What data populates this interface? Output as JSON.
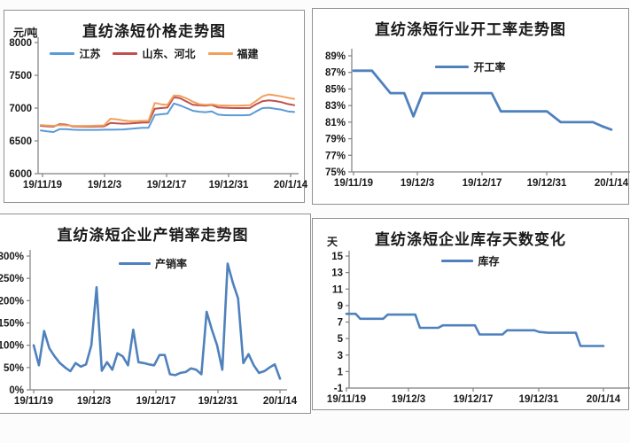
{
  "page": {
    "background": "#fcfcfc",
    "panel_border": "#919191",
    "axis_color": "#7f7f7f",
    "text_color": "#1a1a1a"
  },
  "chart_data": [
    {
      "type": "line",
      "id": "price",
      "title": "直纺涤短价格走势图",
      "y_axis": {
        "unit": "元/吨",
        "min": 6000,
        "max": 8000,
        "step": 500,
        "suffix": ""
      },
      "x_ticks": [
        "19/11/19",
        "19/12/3",
        "19/12/17",
        "19/12/31",
        "20/1/14"
      ],
      "x_domain_days": [
        0,
        56
      ],
      "legend": [
        {
          "label": "江苏",
          "color": "#5B9BD5"
        },
        {
          "label": "山东、河北",
          "color": "#C0504D"
        },
        {
          "label": "福建",
          "color": "#EFA15B"
        }
      ],
      "series": [
        {
          "name": "江苏",
          "color": "#5B9BD5",
          "values": [
            6660,
            6645,
            6635,
            6680,
            6678,
            6670,
            6668,
            6668,
            6668,
            6668,
            6670,
            6670,
            6672,
            6675,
            6682,
            6690,
            6698,
            6700,
            6895,
            6905,
            6915,
            7070,
            7040,
            7000,
            6960,
            6945,
            6938,
            6948,
            6900,
            6892,
            6890,
            6890,
            6890,
            6895,
            6950,
            7000,
            7005,
            6990,
            6975,
            6950,
            6940
          ]
        },
        {
          "name": "山东、河北",
          "color": "#C0504D",
          "values": [
            6730,
            6722,
            6718,
            6755,
            6748,
            6722,
            6720,
            6718,
            6718,
            6720,
            6722,
            6775,
            6768,
            6762,
            6765,
            6772,
            6778,
            6780,
            6990,
            7000,
            7008,
            7165,
            7150,
            7100,
            7050,
            7042,
            7038,
            7048,
            7010,
            7005,
            7002,
            7000,
            7000,
            7002,
            7060,
            7105,
            7118,
            7108,
            7090,
            7062,
            7045
          ]
        },
        {
          "name": "福建",
          "color": "#EFA15B",
          "values": [
            6742,
            6735,
            6730,
            6740,
            6736,
            6730,
            6728,
            6728,
            6730,
            6732,
            6736,
            6838,
            6828,
            6812,
            6802,
            6800,
            6805,
            6806,
            7078,
            7058,
            7048,
            7192,
            7185,
            7148,
            7098,
            7060,
            7050,
            7058,
            7042,
            7040,
            7038,
            7036,
            7040,
            7044,
            7110,
            7180,
            7208,
            7195,
            7178,
            7158,
            7140
          ]
        }
      ]
    },
    {
      "type": "line",
      "id": "op_rate",
      "title": "直纺涤短行业开工率走势图",
      "y_axis": {
        "unit": "",
        "min": 75,
        "max": 89,
        "step": 2,
        "suffix": "%"
      },
      "x_ticks": [
        "19/11/19",
        "19/12/3",
        "19/12/17",
        "19/12/31",
        "20/1/14"
      ],
      "x_domain_days": [
        0,
        56
      ],
      "legend": [
        {
          "label": "开工率",
          "color": "#4F81BD"
        }
      ],
      "series": [
        {
          "name": "开工率",
          "color": "#4F81BD",
          "points": [
            [
              0,
              87.2
            ],
            [
              4,
              87.2
            ],
            [
              8,
              84.5
            ],
            [
              11,
              84.5
            ],
            [
              13,
              81.7
            ],
            [
              15,
              84.5
            ],
            [
              30,
              84.5
            ],
            [
              32,
              82.3
            ],
            [
              42,
              82.3
            ],
            [
              45,
              81.0
            ],
            [
              52,
              81.0
            ],
            [
              54,
              80.5
            ],
            [
              56,
              80.1
            ]
          ]
        }
      ]
    },
    {
      "type": "line",
      "id": "sales",
      "title": "直纺涤短企业产销率走势图",
      "y_axis": {
        "unit": "",
        "min": 0,
        "max": 300,
        "step": 50,
        "suffix": "%"
      },
      "x_ticks": [
        "19/11/19",
        "19/12/3",
        "19/12/17",
        "19/12/31",
        "20/1/14"
      ],
      "x_domain_days": [
        0,
        56
      ],
      "legend": [
        {
          "label": "产销率",
          "color": "#4F81BD"
        }
      ],
      "series": [
        {
          "name": "产销率",
          "color": "#4F81BD",
          "values": [
            100,
            55,
            132,
            93,
            75,
            60,
            50,
            42,
            60,
            52,
            57,
            100,
            230,
            43,
            62,
            45,
            82,
            75,
            55,
            135,
            62,
            60,
            57,
            55,
            78,
            78,
            35,
            33,
            38,
            40,
            48,
            45,
            35,
            175,
            135,
            100,
            45,
            283,
            240,
            205,
            60,
            80,
            55,
            38,
            42,
            50,
            57,
            25
          ]
        }
      ]
    },
    {
      "type": "line",
      "id": "inventory",
      "title": "直纺涤短企业库存天数变化",
      "y_axis": {
        "unit": "天",
        "min": -1,
        "max": 15,
        "step": 2,
        "suffix": ""
      },
      "x_ticks": [
        "19/11/19",
        "19/12/3",
        "19/12/17",
        "19/12/31",
        "20/1/14"
      ],
      "x_domain_days": [
        0,
        56
      ],
      "legend": [
        {
          "label": "库存",
          "color": "#4F81BD"
        }
      ],
      "series": [
        {
          "name": "库存",
          "color": "#4F81BD",
          "points": [
            [
              0,
              8.0
            ],
            [
              2,
              8.0
            ],
            [
              3,
              7.4
            ],
            [
              8,
              7.4
            ],
            [
              9,
              7.9
            ],
            [
              15,
              7.9
            ],
            [
              16,
              6.3
            ],
            [
              20,
              6.3
            ],
            [
              21,
              6.6
            ],
            [
              28,
              6.6
            ],
            [
              29,
              5.5
            ],
            [
              34,
              5.5
            ],
            [
              35,
              6.0
            ],
            [
              41,
              6.0
            ],
            [
              42,
              5.8
            ],
            [
              44,
              5.7
            ],
            [
              50,
              5.7
            ],
            [
              51,
              4.1
            ],
            [
              56,
              4.1
            ]
          ]
        }
      ]
    }
  ]
}
